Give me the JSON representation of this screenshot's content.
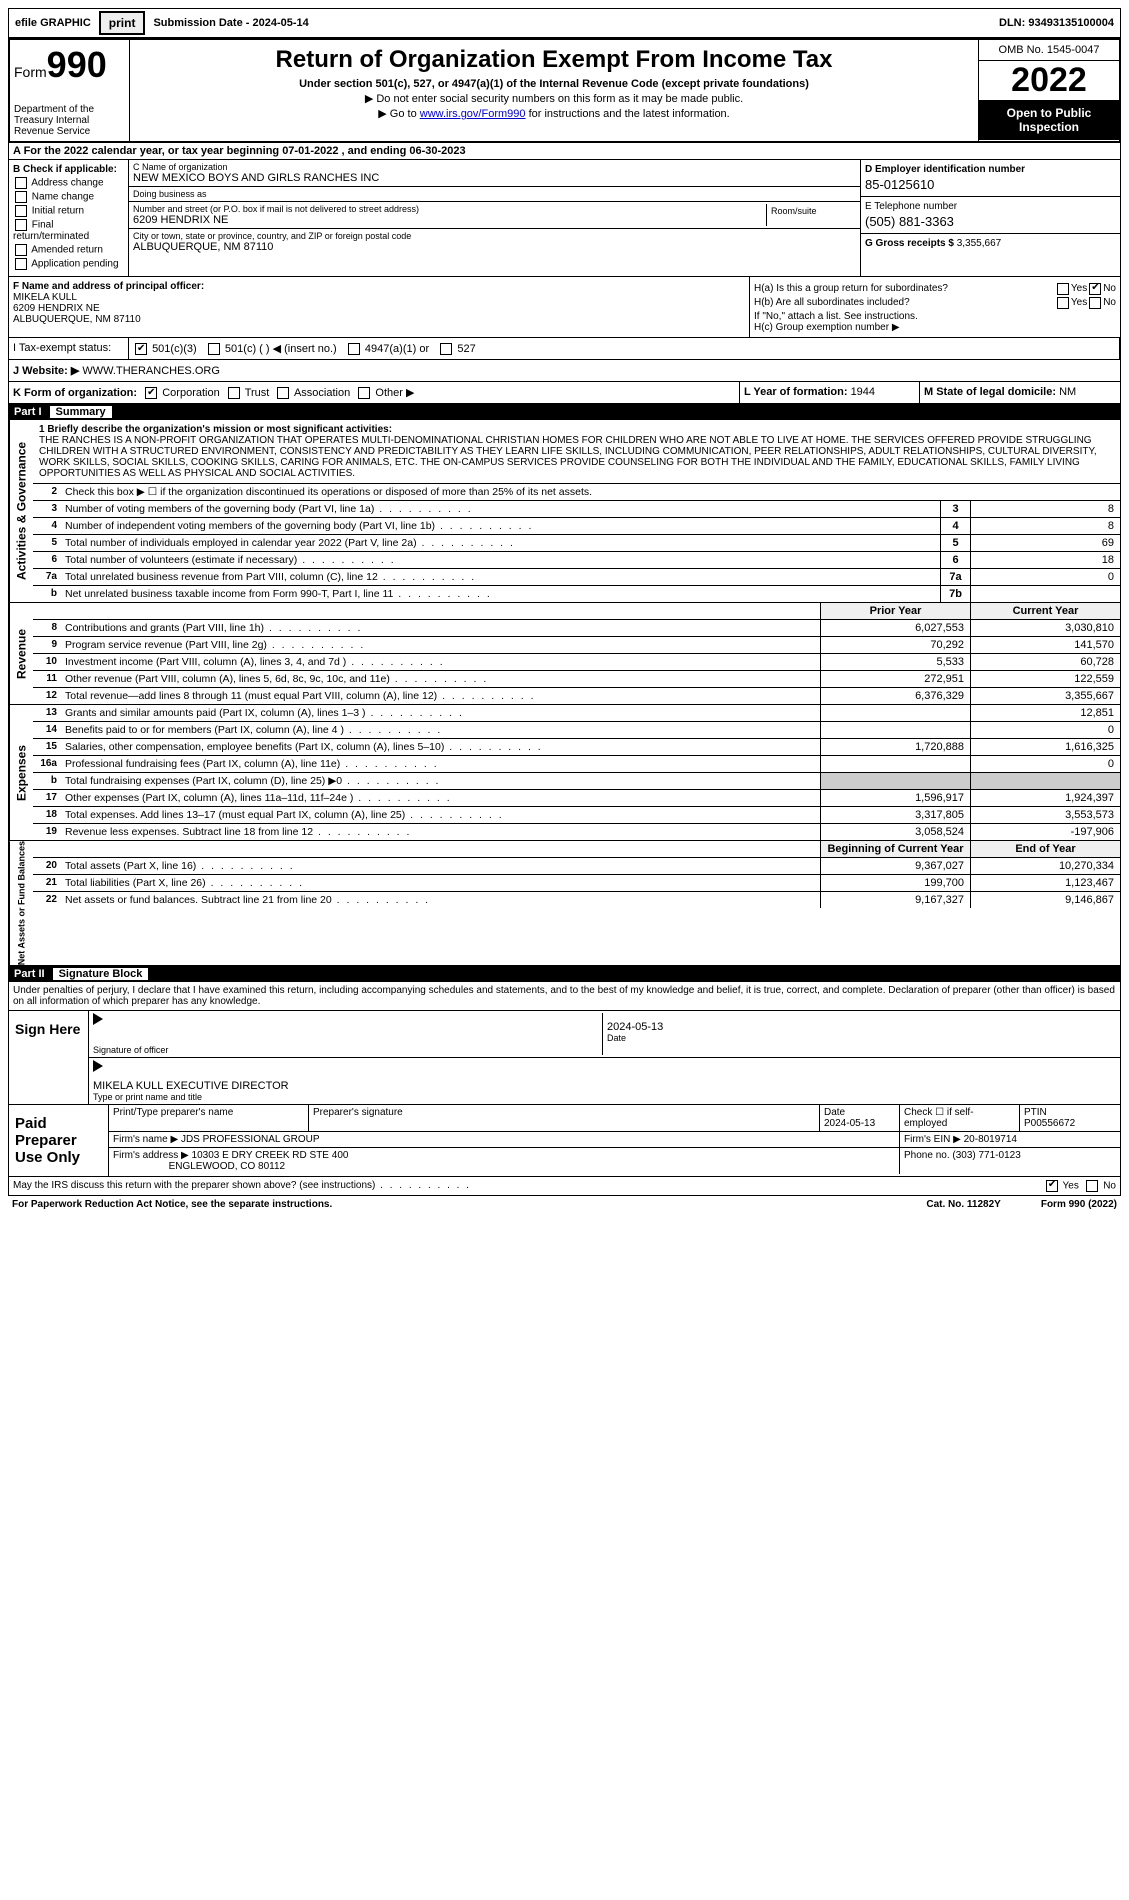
{
  "topbar": {
    "efile": "efile GRAPHIC",
    "print_btn": "print",
    "sub_label": "Submission Date - ",
    "sub_date": "2024-05-14",
    "dln_label": "DLN: ",
    "dln": "93493135100004"
  },
  "header": {
    "form_label": "Form",
    "form_num": "990",
    "dept": "Department of the Treasury Internal Revenue Service",
    "title": "Return of Organization Exempt From Income Tax",
    "subtitle": "Under section 501(c), 527, or 4947(a)(1) of the Internal Revenue Code (except private foundations)",
    "note1": "▶ Do not enter social security numbers on this form as it may be made public.",
    "note2_pre": "▶ Go to ",
    "note2_link": "www.irs.gov/Form990",
    "note2_post": " for instructions and the latest information.",
    "omb": "OMB No. 1545-0047",
    "year": "2022",
    "open_pub": "Open to Public Inspection"
  },
  "rowA": "A For the 2022 calendar year, or tax year beginning 07-01-2022  , and ending 06-30-2023",
  "colB": {
    "title": "B Check if applicable:",
    "items": [
      "Address change",
      "Name change",
      "Initial return",
      "Final return/terminated",
      "Amended return",
      "Application pending"
    ]
  },
  "colC": {
    "name_lbl": "C Name of organization",
    "name": "NEW MEXICO BOYS AND GIRLS RANCHES INC",
    "dba_lbl": "Doing business as",
    "dba": "",
    "addr_lbl": "Number and street (or P.O. box if mail is not delivered to street address)",
    "addr": "6209 HENDRIX NE",
    "room_lbl": "Room/suite",
    "city_lbl": "City or town, state or province, country, and ZIP or foreign postal code",
    "city": "ALBUQUERQUE, NM  87110"
  },
  "colDE": {
    "d_lbl": "D Employer identification number",
    "d_val": "85-0125610",
    "e_lbl": "E Telephone number",
    "e_val": "(505) 881-3363",
    "g_lbl": "G Gross receipts $ ",
    "g_val": "3,355,667"
  },
  "rowF": {
    "lbl": "F Name and address of principal officer:",
    "name": "MIKELA KULL",
    "addr1": "6209 HENDRIX NE",
    "addr2": "ALBUQUERQUE, NM  87110"
  },
  "rowH": {
    "a_lbl": "H(a)  Is this a group return for subordinates?",
    "b_lbl": "H(b)  Are all subordinates included?",
    "b_note": "If \"No,\" attach a list. See instructions.",
    "c_lbl": "H(c)  Group exemption number ▶",
    "yes": "Yes",
    "no": "No"
  },
  "rowI": {
    "lbl": "I    Tax-exempt status:",
    "o1": "501(c)(3)",
    "o2": "501(c) (  ) ◀ (insert no.)",
    "o3": "4947(a)(1) or",
    "o4": "527"
  },
  "rowJ": {
    "lbl": "J   Website: ▶",
    "val": " WWW.THERANCHES.ORG"
  },
  "rowK": {
    "lbl": "K Form of organization:",
    "o1": "Corporation",
    "o2": "Trust",
    "o3": "Association",
    "o4": "Other ▶",
    "l_lbl": "L Year of formation: ",
    "l_val": "1944",
    "m_lbl": "M State of legal domicile: ",
    "m_val": "NM"
  },
  "partI": {
    "hdr_part": "Part I",
    "hdr_title": "Summary",
    "side_ag": "Activities & Governance",
    "side_rev": "Revenue",
    "side_exp": "Expenses",
    "side_net": "Net Assets or Fund Balances",
    "q1_lbl": "1   Briefly describe the organization's mission or most significant activities:",
    "q1_txt": "THE RANCHES IS A NON-PROFIT ORGANIZATION THAT OPERATES MULTI-DENOMINATIONAL CHRISTIAN HOMES FOR CHILDREN WHO ARE NOT ABLE TO LIVE AT HOME. THE SERVICES OFFERED PROVIDE STRUGGLING CHILDREN WITH A STRUCTURED ENVIRONMENT, CONSISTENCY AND PREDICTABILITY AS THEY LEARN LIFE SKILLS, INCLUDING COMMUNICATION, PEER RELATIONSHIPS, ADULT RELATIONSHIPS, CULTURAL DIVERSITY, WORK SKILLS, SOCIAL SKILLS, COOKING SKILLS, CARING FOR ANIMALS, ETC. THE ON-CAMPUS SERVICES PROVIDE COUNSELING FOR BOTH THE INDIVIDUAL AND THE FAMILY, EDUCATIONAL SKILLS, FAMILY LIVING OPPORTUNITIES AS WELL AS PHYSICAL AND SOCIAL ACTIVITIES.",
    "q2": "Check this box ▶ ☐ if the organization discontinued its operations or disposed of more than 25% of its net assets.",
    "gov_rows": [
      {
        "n": "3",
        "t": "Number of voting members of the governing body (Part VI, line 1a)",
        "nb": "3",
        "v": "8"
      },
      {
        "n": "4",
        "t": "Number of independent voting members of the governing body (Part VI, line 1b)",
        "nb": "4",
        "v": "8"
      },
      {
        "n": "5",
        "t": "Total number of individuals employed in calendar year 2022 (Part V, line 2a)",
        "nb": "5",
        "v": "69"
      },
      {
        "n": "6",
        "t": "Total number of volunteers (estimate if necessary)",
        "nb": "6",
        "v": "18"
      },
      {
        "n": "7a",
        "t": "Total unrelated business revenue from Part VIII, column (C), line 12",
        "nb": "7a",
        "v": "0"
      },
      {
        "n": "b",
        "t": "Net unrelated business taxable income from Form 990-T, Part I, line 11",
        "nb": "7b",
        "v": ""
      }
    ],
    "col_prior": "Prior Year",
    "col_curr": "Current Year",
    "rev_rows": [
      {
        "n": "8",
        "t": "Contributions and grants (Part VIII, line 1h)",
        "p": "6,027,553",
        "c": "3,030,810"
      },
      {
        "n": "9",
        "t": "Program service revenue (Part VIII, line 2g)",
        "p": "70,292",
        "c": "141,570"
      },
      {
        "n": "10",
        "t": "Investment income (Part VIII, column (A), lines 3, 4, and 7d )",
        "p": "5,533",
        "c": "60,728"
      },
      {
        "n": "11",
        "t": "Other revenue (Part VIII, column (A), lines 5, 6d, 8c, 9c, 10c, and 11e)",
        "p": "272,951",
        "c": "122,559"
      },
      {
        "n": "12",
        "t": "Total revenue—add lines 8 through 11 (must equal Part VIII, column (A), line 12)",
        "p": "6,376,329",
        "c": "3,355,667"
      }
    ],
    "exp_rows": [
      {
        "n": "13",
        "t": "Grants and similar amounts paid (Part IX, column (A), lines 1–3 )",
        "p": "",
        "c": "12,851"
      },
      {
        "n": "14",
        "t": "Benefits paid to or for members (Part IX, column (A), line 4 )",
        "p": "",
        "c": "0"
      },
      {
        "n": "15",
        "t": "Salaries, other compensation, employee benefits (Part IX, column (A), lines 5–10)",
        "p": "1,720,888",
        "c": "1,616,325"
      },
      {
        "n": "16a",
        "t": "Professional fundraising fees (Part IX, column (A), line 11e)",
        "p": "",
        "c": "0"
      },
      {
        "n": "b",
        "t": "Total fundraising expenses (Part IX, column (D), line 25) ▶0",
        "p": "shade",
        "c": "shade"
      },
      {
        "n": "17",
        "t": "Other expenses (Part IX, column (A), lines 11a–11d, 11f–24e )",
        "p": "1,596,917",
        "c": "1,924,397"
      },
      {
        "n": "18",
        "t": "Total expenses. Add lines 13–17 (must equal Part IX, column (A), line 25)",
        "p": "3,317,805",
        "c": "3,553,573"
      },
      {
        "n": "19",
        "t": "Revenue less expenses. Subtract line 18 from line 12",
        "p": "3,058,524",
        "c": "-197,906"
      }
    ],
    "net_hdr_p": "Beginning of Current Year",
    "net_hdr_c": "End of Year",
    "net_rows": [
      {
        "n": "20",
        "t": "Total assets (Part X, line 16)",
        "p": "9,367,027",
        "c": "10,270,334"
      },
      {
        "n": "21",
        "t": "Total liabilities (Part X, line 26)",
        "p": "199,700",
        "c": "1,123,467"
      },
      {
        "n": "22",
        "t": "Net assets or fund balances. Subtract line 21 from line 20",
        "p": "9,167,327",
        "c": "9,146,867"
      }
    ]
  },
  "partII": {
    "hdr_part": "Part II",
    "hdr_title": "Signature Block",
    "penalties": "Under penalties of perjury, I declare that I have examined this return, including accompanying schedules and statements, and to the best of my knowledge and belief, it is true, correct, and complete. Declaration of preparer (other than officer) is based on all information of which preparer has any knowledge.",
    "sign_here": "Sign Here",
    "sig_officer_lbl": "Signature of officer",
    "sig_date": "2024-05-13",
    "sig_date_lbl": "Date",
    "sig_name": "MIKELA KULL  EXECUTIVE DIRECTOR",
    "sig_name_lbl": "Type or print name and title",
    "paid_lbl": "Paid Preparer Use Only",
    "p_name_lbl": "Print/Type preparer's name",
    "p_sig_lbl": "Preparer's signature",
    "p_date_lbl": "Date",
    "p_date": "2024-05-13",
    "p_self_lbl": "Check ☐ if self-employed",
    "p_ptin_lbl": "PTIN",
    "p_ptin": "P00556672",
    "firm_name_lbl": "Firm's name     ▶ ",
    "firm_name": "JDS PROFESSIONAL GROUP",
    "firm_ein_lbl": "Firm's EIN ▶ ",
    "firm_ein": "20-8019714",
    "firm_addr_lbl": "Firm's address ▶ ",
    "firm_addr1": "10303 E DRY CREEK RD STE 400",
    "firm_addr2": "ENGLEWOOD, CO  80112",
    "firm_phone_lbl": "Phone no. ",
    "firm_phone": "(303) 771-0123",
    "discuss": "May the IRS discuss this return with the preparer shown above? (see instructions)",
    "yes": "Yes",
    "no": "No"
  },
  "footer": {
    "pra": "For Paperwork Reduction Act Notice, see the separate instructions.",
    "cat": "Cat. No. 11282Y",
    "form": "Form 990 (2022)"
  },
  "colors": {
    "link": "#0000cc",
    "black": "#000000",
    "shade": "#cccccc"
  }
}
